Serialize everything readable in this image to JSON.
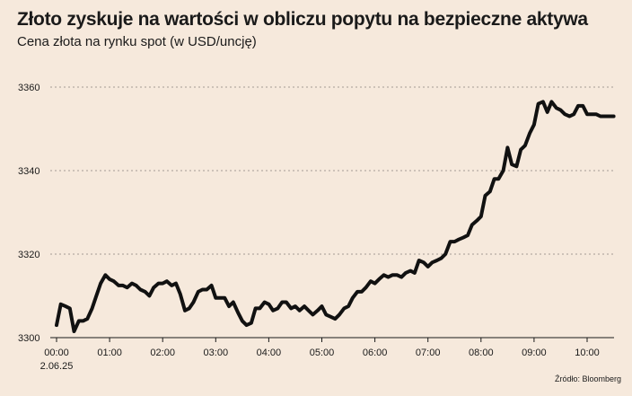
{
  "header": {
    "title": "Złoto zyskuje na wartości w obliczu popytu na bezpieczne aktywa",
    "subtitle": "Cena złota na rynku spot (w USD/uncję)"
  },
  "footer": {
    "source": "Źródło: Bloomberg"
  },
  "chart_data": {
    "type": "line",
    "title": "Złoto zyskuje na wartości w obliczu popytu na bezpieczne aktywa",
    "subtitle": "Cena złota na rynku spot (w USD/uncję)",
    "xlabel": "",
    "ylabel": "",
    "xlim": [
      0,
      10.5
    ],
    "ylim": [
      3300,
      3362
    ],
    "yticks": [
      {
        "value": 3300,
        "label": "3300"
      },
      {
        "value": 3320,
        "label": "3320"
      },
      {
        "value": 3340,
        "label": "3340"
      },
      {
        "value": 3360,
        "label": "3360"
      }
    ],
    "xticks": [
      {
        "value": 0,
        "label": "00:00",
        "sublabel": "2.06.25"
      },
      {
        "value": 1,
        "label": "01:00"
      },
      {
        "value": 2,
        "label": "02:00"
      },
      {
        "value": 3,
        "label": "03:00"
      },
      {
        "value": 4,
        "label": "04:00"
      },
      {
        "value": 5,
        "label": "05:00"
      },
      {
        "value": 6,
        "label": "06:00"
      },
      {
        "value": 7,
        "label": "07:00"
      },
      {
        "value": 8,
        "label": "08:00"
      },
      {
        "value": 9,
        "label": "09:00"
      },
      {
        "value": 10,
        "label": "10:00"
      }
    ],
    "grid": "horizontal dotted",
    "legend": "none",
    "series_color": "#111111",
    "x": [
      0.0,
      0.08,
      0.17,
      0.25,
      0.33,
      0.42,
      0.5,
      0.58,
      0.67,
      0.75,
      0.83,
      0.92,
      1.0,
      1.08,
      1.17,
      1.25,
      1.33,
      1.42,
      1.5,
      1.58,
      1.67,
      1.75,
      1.83,
      1.92,
      2.0,
      2.08,
      2.17,
      2.25,
      2.33,
      2.42,
      2.5,
      2.58,
      2.67,
      2.75,
      2.83,
      2.92,
      3.0,
      3.08,
      3.17,
      3.25,
      3.33,
      3.42,
      3.5,
      3.58,
      3.67,
      3.75,
      3.83,
      3.92,
      4.0,
      4.08,
      4.17,
      4.25,
      4.33,
      4.42,
      4.5,
      4.58,
      4.67,
      4.75,
      4.83,
      4.92,
      5.0,
      5.08,
      5.17,
      5.25,
      5.33,
      5.42,
      5.5,
      5.58,
      5.67,
      5.75,
      5.83,
      5.92,
      6.0,
      6.08,
      6.17,
      6.25,
      6.33,
      6.42,
      6.5,
      6.58,
      6.67,
      6.75,
      6.83,
      6.92,
      7.0,
      7.08,
      7.17,
      7.25,
      7.33,
      7.42,
      7.5,
      7.58,
      7.67,
      7.75,
      7.83,
      7.92,
      8.0,
      8.08,
      8.17,
      8.25,
      8.33,
      8.42,
      8.5,
      8.58,
      8.67,
      8.75,
      8.83,
      8.92,
      9.0,
      9.08,
      9.17,
      9.25,
      9.33,
      9.42,
      9.5,
      9.58,
      9.67,
      9.75,
      9.83,
      9.92,
      10.0,
      10.08,
      10.17,
      10.25,
      10.33,
      10.42,
      10.5
    ],
    "series": [
      {
        "values": [
          3303,
          3308,
          3307.5,
          3307,
          3301.5,
          3304,
          3304,
          3304.5,
          3307,
          3310,
          3313,
          3315,
          3314,
          3313.5,
          3312.5,
          3312.5,
          3312,
          3313,
          3312.5,
          3311.5,
          3311,
          3310,
          3312,
          3313,
          3313,
          3313.5,
          3312.5,
          3313,
          3310.5,
          3306.5,
          3307,
          3308.5,
          3311,
          3311.5,
          3311.5,
          3312.5,
          3309.5,
          3309.5,
          3309.5,
          3307.5,
          3308.5,
          3306,
          3304,
          3303,
          3303.5,
          3307,
          3307,
          3308.5,
          3308,
          3306.5,
          3307,
          3308.5,
          3308.5,
          3307,
          3307.5,
          3306.5,
          3307.5,
          3306.5,
          3305.5,
          3306.5,
          3307.5,
          3305.5,
          3305,
          3304.5,
          3305.5,
          3307,
          3307.5,
          3309.5,
          3311,
          3311,
          3312,
          3313.5,
          3313,
          3314,
          3315,
          3314.5,
          3315,
          3315,
          3314.5,
          3315.5,
          3316,
          3315.5,
          3318.5,
          3318,
          3317,
          3318,
          3318.5,
          3319,
          3320,
          3323,
          3323,
          3323.5,
          3324,
          3324.5,
          3327,
          3328,
          3329,
          3334,
          3335,
          3338,
          3338,
          3340,
          3345.5,
          3341.5,
          3341,
          3345,
          3346,
          3349,
          3351,
          3356,
          3356.5,
          3354,
          3356.5,
          3355,
          3354.5,
          3353.5,
          3353,
          3353.5,
          3355.5,
          3355.5,
          3353.5,
          3353.5,
          3353.5,
          3353,
          3353,
          3353,
          3353
        ]
      }
    ]
  }
}
